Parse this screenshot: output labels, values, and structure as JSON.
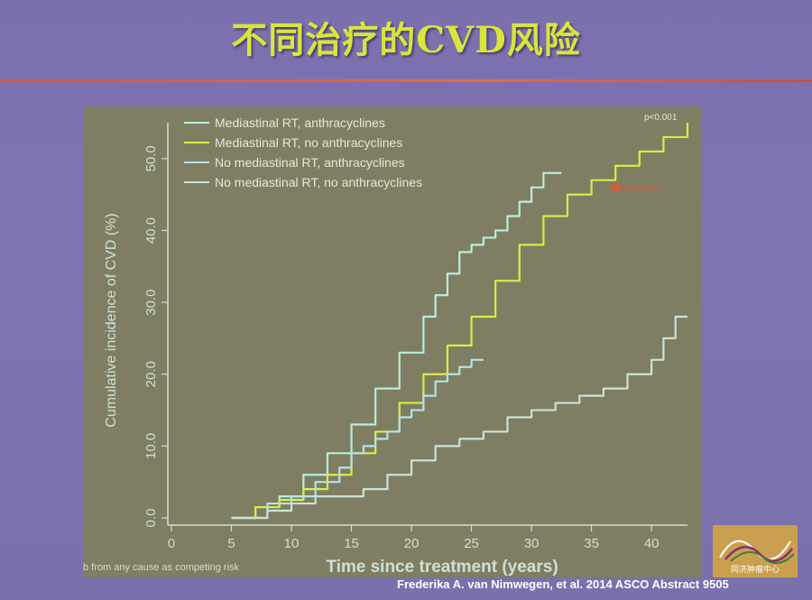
{
  "title": "不同治疗的CVD风险",
  "footer": "Frederika A. van Nimwegen, et al. 2014  ASCO Abstract 9505",
  "logo_text": "同济肿瘤中心",
  "colors": {
    "title": "#d8e63a",
    "rule": "#d2573e",
    "arrow": "#e05a36",
    "panel": "#7f7e62"
  },
  "chart_data": {
    "type": "line",
    "title": "",
    "xlabel": "Time since treatment (years)",
    "ylabel": "Cumulative incidence of CVD (%)",
    "xlim": [
      0,
      43
    ],
    "ylim": [
      0,
      55
    ],
    "xticks": [
      0,
      5,
      10,
      15,
      20,
      25,
      30,
      35,
      40
    ],
    "yticks": [
      0.0,
      10.0,
      20.0,
      30.0,
      40.0,
      50.0
    ],
    "p_value": "p<0.001",
    "footnote": "b from any cause as competing risk",
    "legend_position": "top-left",
    "series": [
      {
        "name": "Mediastinal RT, anthracyclines",
        "color": "#b8eedf",
        "x": [
          5,
          7,
          9,
          11,
          13,
          15,
          17,
          19,
          21,
          22,
          23,
          24,
          25,
          26,
          27,
          28,
          29,
          30,
          31,
          32,
          32.5
        ],
        "y": [
          0,
          1.5,
          3,
          6,
          9,
          13,
          18,
          23,
          28,
          31,
          34,
          37,
          38,
          39,
          40,
          42,
          44,
          46,
          48,
          48,
          48
        ]
      },
      {
        "name": "Mediastinal RT,  no anthracyclines",
        "color": "#d8ec4a",
        "x": [
          5,
          7,
          9,
          11,
          13,
          15,
          17,
          19,
          21,
          23,
          25,
          27,
          29,
          31,
          33,
          35,
          37,
          39,
          41,
          43
        ],
        "y": [
          0,
          1.5,
          2.5,
          4,
          6,
          9,
          12,
          16,
          20,
          24,
          28,
          33,
          38,
          42,
          45,
          47,
          49,
          51,
          53,
          55
        ]
      },
      {
        "name": "No mediastinal RT, anthracyclines",
        "color": "#b4e2ea",
        "x": [
          5,
          8,
          10,
          12,
          14,
          15,
          16,
          17,
          18,
          19,
          20,
          21,
          22,
          23,
          24,
          25,
          26
        ],
        "y": [
          0,
          2,
          3,
          5,
          7,
          9,
          10,
          11,
          12,
          14,
          15,
          17,
          19,
          20,
          21,
          22,
          22
        ]
      },
      {
        "name": "No mediastinal RT, no anthracyclines",
        "color": "#c9e4d6",
        "x": [
          5,
          8,
          10,
          12,
          14,
          16,
          18,
          20,
          22,
          24,
          26,
          28,
          30,
          32,
          34,
          36,
          38,
          40,
          41,
          42,
          43
        ],
        "y": [
          0,
          1,
          2,
          3,
          3,
          4,
          6,
          8,
          10,
          11,
          12,
          14,
          15,
          16,
          17,
          18,
          20,
          22,
          25,
          28,
          28
        ]
      }
    ]
  }
}
